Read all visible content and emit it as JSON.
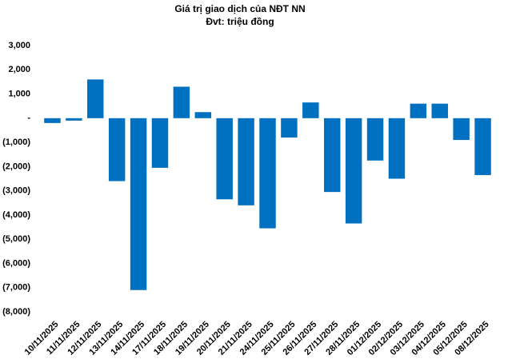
{
  "chart_data": {
    "type": "bar",
    "title": "Giá trị giao dịch của NĐT NN",
    "subtitle": "Đvt: triệu đồng",
    "categories": [
      "10/11/2025",
      "11/11/2025",
      "12/11/2025",
      "13/11/2025",
      "14/11/2025",
      "17/11/2025",
      "18/11/2025",
      "19/11/2025",
      "20/11/2025",
      "21/11/2025",
      "24/11/2025",
      "25/11/2025",
      "26/11/2025",
      "27/11/2025",
      "28/11/2025",
      "01/12/2025",
      "02/12/2025",
      "03/12/2025",
      "04/12/2025",
      "05/12/2025",
      "08/12/2025"
    ],
    "values": [
      -200,
      -100,
      1600,
      -2600,
      -7100,
      -2050,
      1300,
      250,
      -3350,
      -3600,
      -4550,
      -800,
      650,
      -3050,
      -4350,
      -1750,
      -2500,
      600,
      600,
      -900,
      -2350
    ],
    "color": "#0070c0",
    "ylim": [
      -8000,
      3000
    ],
    "yticks": [
      {
        "value": 3000,
        "label": "3,000"
      },
      {
        "value": 2000,
        "label": "2,000"
      },
      {
        "value": 1000,
        "label": "1,000"
      },
      {
        "value": 0,
        "label": "-"
      },
      {
        "value": -1000,
        "label": "(1,000)"
      },
      {
        "value": -2000,
        "label": "(2,000)"
      },
      {
        "value": -3000,
        "label": "(3,000)"
      },
      {
        "value": -4000,
        "label": "(4,000)"
      },
      {
        "value": -5000,
        "label": "(5,000)"
      },
      {
        "value": -6000,
        "label": "(6,000)"
      },
      {
        "value": -7000,
        "label": "(7,000)"
      },
      {
        "value": -8000,
        "label": "(8,000)"
      }
    ],
    "grid": false
  }
}
